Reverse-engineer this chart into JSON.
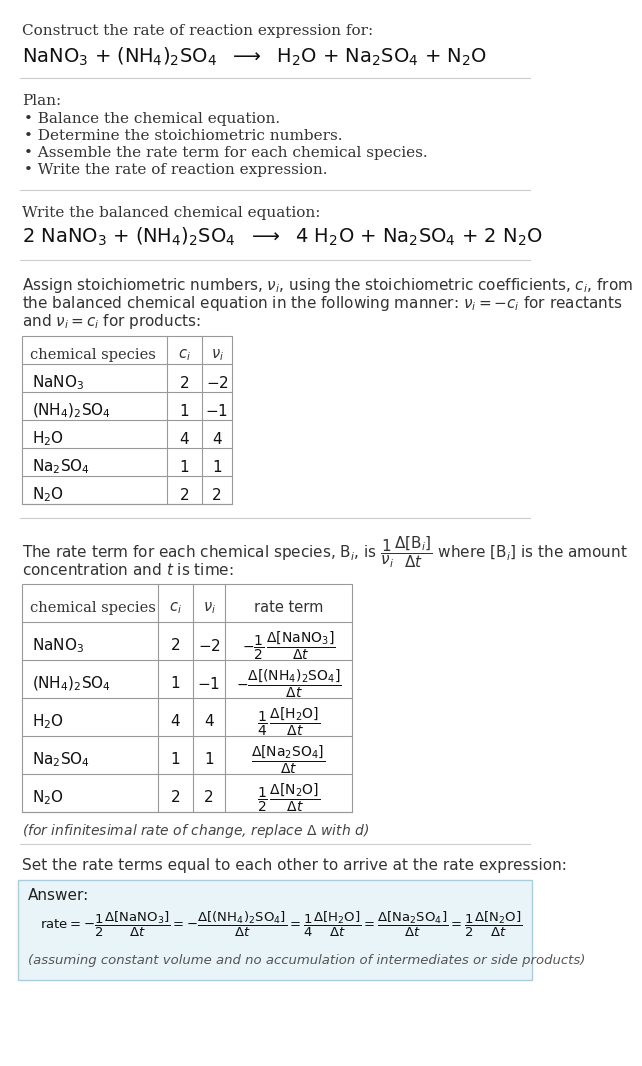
{
  "bg_color": "#ffffff",
  "text_color": "#222222",
  "light_gray": "#aaaaaa",
  "section_divider_color": "#cccccc",
  "answer_bg": "#e8f4f8",
  "answer_border": "#aaccdd",
  "title_text": "Construct the rate of reaction expression for:",
  "rxn_unbal": "NaNO$_3$ + (NH$_4$)$_2$SO$_4$  $\\longrightarrow$  H$_2$O + Na$_2$SO$_4$ + N$_2$O",
  "plan_label": "Plan:",
  "plan_bullets": [
    "\\textbullet  Balance the chemical equation.",
    "\\textbullet  Determine the stoichiometric numbers.",
    "\\textbullet  Assemble the rate term for each chemical species.",
    "\\textbullet  Write the rate of reaction expression."
  ],
  "balanced_label": "Write the balanced chemical equation:",
  "rxn_bal": "2 NaNO$_3$ + (NH$_4$)$_2$SO$_4$  $\\longrightarrow$  4 H$_2$O + Na$_2$SO$_4$ + 2 N$_2$O",
  "stoich_para_lines": [
    "Assign stoichiometric numbers, $\\nu_i$, using the stoichiometric coefficients, $c_i$, from",
    "the balanced chemical equation in the following manner: $\\nu_i = -c_i$ for reactants",
    "and $\\nu_i = c_i$ for products:"
  ],
  "t1_col_labels": [
    "chemical species",
    "$c_i$",
    "$\\nu_i$"
  ],
  "t1_rows": [
    [
      "NaNO$_3$",
      "2",
      "$-2$"
    ],
    [
      "(NH$_4$)$_2$SO$_4$",
      "1",
      "$-1$"
    ],
    [
      "H$_2$O",
      "4",
      "4"
    ],
    [
      "Na$_2$SO$_4$",
      "1",
      "1"
    ],
    [
      "N$_2$O",
      "2",
      "2"
    ]
  ],
  "rate_para_line1": "The rate term for each chemical species, B$_i$, is $\\dfrac{1}{\\nu_i}\\dfrac{\\Delta[\\mathrm{B}_i]}{\\Delta t}$ where [B$_i$] is the amount",
  "rate_para_line2": "concentration and $t$ is time:",
  "t2_col_labels": [
    "chemical species",
    "$c_i$",
    "$\\nu_i$",
    "rate term"
  ],
  "t2_rows": [
    [
      "NaNO$_3$",
      "2",
      "$-2$",
      "$-\\dfrac{1}{2}\\,\\dfrac{\\Delta[\\mathrm{NaNO_3}]}{\\Delta t}$"
    ],
    [
      "(NH$_4$)$_2$SO$_4$",
      "1",
      "$-1$",
      "$-\\dfrac{\\Delta[\\mathrm{(NH_4)_2SO_4}]}{\\Delta t}$"
    ],
    [
      "H$_2$O",
      "4",
      "4",
      "$\\dfrac{1}{4}\\,\\dfrac{\\Delta[\\mathrm{H_2O}]}{\\Delta t}$"
    ],
    [
      "Na$_2$SO$_4$",
      "1",
      "1",
      "$\\dfrac{\\Delta[\\mathrm{Na_2SO_4}]}{\\Delta t}$"
    ],
    [
      "N$_2$O",
      "2",
      "2",
      "$\\dfrac{1}{2}\\,\\dfrac{\\Delta[\\mathrm{N_2O}]}{\\Delta t}$"
    ]
  ],
  "infin_note": "(for infinitesimal rate of change, replace $\\Delta$ with $d$)",
  "set_equal_text": "Set the rate terms equal to each other to arrive at the rate expression:",
  "answer_label": "Answer:",
  "rate_expr": "$\\mathrm{rate} = -\\dfrac{1}{2}\\dfrac{\\Delta[\\mathrm{NaNO_3}]}{\\Delta t} = -\\dfrac{\\Delta[\\mathrm{(NH_4)_2SO_4}]}{\\Delta t} = \\dfrac{1}{4}\\dfrac{\\Delta[\\mathrm{H_2O}]}{\\Delta t} = \\dfrac{\\Delta[\\mathrm{Na_2SO_4}]}{\\Delta t} = \\dfrac{1}{2}\\dfrac{\\Delta[\\mathrm{N_2O}]}{\\Delta t}$",
  "assuming_text": "(assuming constant volume and no accumulation of intermediates or side products)"
}
